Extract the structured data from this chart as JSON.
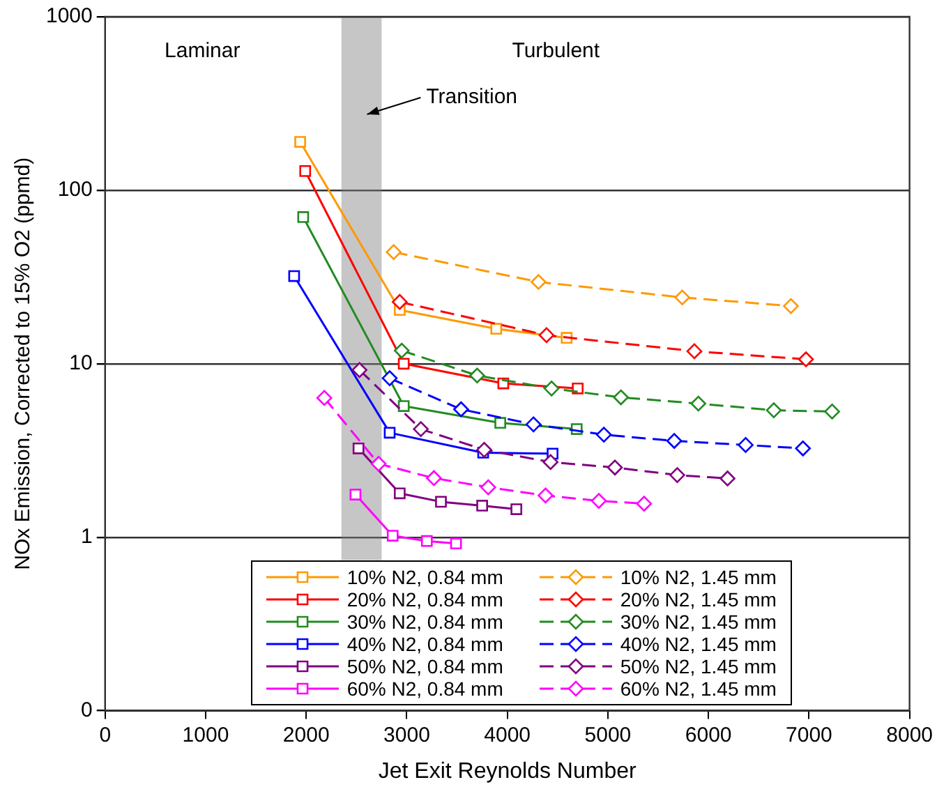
{
  "chart_data": {
    "type": "line",
    "xlabel": "Jet Exit Reynolds Number",
    "ylabel": "NOx Emission, Corrected to 15% O2 (ppmd)",
    "xlim": [
      0,
      8000
    ],
    "xticks": [
      0,
      1000,
      2000,
      3000,
      4000,
      5000,
      6000,
      7000,
      8000
    ],
    "ylim": [
      0.1,
      1000
    ],
    "yticks": [
      {
        "value": 0.1,
        "label": "0"
      },
      1,
      10,
      100,
      1000
    ],
    "log": "y",
    "grid": "y",
    "legend": "bottom",
    "annotations": [
      "Laminar",
      "Turbulent"
    ],
    "bands": [
      {
        "axis": "x",
        "from": 2350,
        "to": 2750,
        "label": "Transition",
        "color": "#808080"
      }
    ],
    "series": [
      {
        "name": "10% N2, 0.84 mm",
        "color": "#ff9900",
        "marker": "square",
        "line_style": "solid",
        "x": [
          1940,
          2930,
          3890,
          4590
        ],
        "values": [
          190,
          20.4,
          15.9,
          14.1
        ]
      },
      {
        "name": "20% N2, 0.84 mm",
        "color": "#ff0000",
        "marker": "square",
        "line_style": "solid",
        "x": [
          1990,
          2970,
          3960,
          4700
        ],
        "values": [
          129,
          10,
          7.7,
          7.2
        ]
      },
      {
        "name": "30% N2, 0.84 mm",
        "color": "#228b22",
        "marker": "square",
        "line_style": "solid",
        "x": [
          1970,
          2970,
          3930,
          4690
        ],
        "values": [
          70,
          5.7,
          4.56,
          4.2
        ]
      },
      {
        "name": "40% N2, 0.84 mm",
        "color": "#0000ff",
        "marker": "square",
        "line_style": "solid",
        "x": [
          1880,
          2830,
          3760,
          4450
        ],
        "values": [
          32,
          4.0,
          3.07,
          3.03
        ]
      },
      {
        "name": "50% N2, 0.84 mm",
        "color": "#800080",
        "marker": "square",
        "line_style": "solid",
        "x": [
          2520,
          2930,
          3340,
          3750,
          4090
        ],
        "values": [
          3.25,
          1.79,
          1.6,
          1.52,
          1.45
        ]
      },
      {
        "name": "60% N2, 0.84 mm",
        "color": "#ff00ff",
        "marker": "square",
        "line_style": "solid",
        "x": [
          2490,
          2860,
          3200,
          3490
        ],
        "values": [
          1.76,
          1.02,
          0.95,
          0.92
        ]
      },
      {
        "name": "10% N2, 1.45 mm",
        "color": "#ff9900",
        "marker": "diamond",
        "line_style": "dashed",
        "x": [
          2870,
          4310,
          5740,
          6820
        ],
        "values": [
          44,
          29.6,
          24.1,
          21.5
        ]
      },
      {
        "name": "20% N2, 1.45 mm",
        "color": "#ff0000",
        "marker": "diamond",
        "line_style": "dashed",
        "x": [
          2930,
          4390,
          5860,
          6970
        ],
        "values": [
          22.7,
          14.6,
          11.8,
          10.6
        ]
      },
      {
        "name": "30% N2, 1.45 mm",
        "color": "#228b22",
        "marker": "diamond",
        "line_style": "dashed",
        "x": [
          2950,
          3700,
          4440,
          5130,
          5900,
          6650,
          7230
        ],
        "values": [
          11.9,
          8.55,
          7.2,
          6.4,
          5.89,
          5.39,
          5.3
        ]
      },
      {
        "name": "40% N2, 1.45 mm",
        "color": "#0000ff",
        "marker": "diamond",
        "line_style": "dashed",
        "x": [
          2830,
          3540,
          4260,
          4960,
          5660,
          6370,
          6940
        ],
        "values": [
          8.25,
          5.46,
          4.47,
          3.9,
          3.59,
          3.4,
          3.25
        ]
      },
      {
        "name": "50% N2, 1.45 mm",
        "color": "#800080",
        "marker": "diamond",
        "line_style": "dashed",
        "x": [
          2530,
          3140,
          3770,
          4430,
          5070,
          5690,
          6190
        ],
        "values": [
          9.2,
          4.2,
          3.19,
          2.71,
          2.52,
          2.28,
          2.18
        ]
      },
      {
        "name": "60% N2, 1.45 mm",
        "color": "#ff00ff",
        "marker": "diamond",
        "line_style": "dashed",
        "x": [
          2180,
          2720,
          3270,
          3810,
          4380,
          4910,
          5360
        ],
        "values": [
          6.35,
          2.65,
          2.19,
          1.94,
          1.74,
          1.62,
          1.56
        ]
      }
    ]
  }
}
